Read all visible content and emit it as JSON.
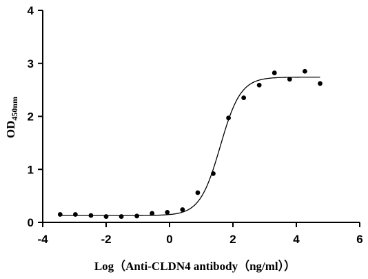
{
  "chart_data": {
    "type": "scatter",
    "xlabel": "Log（Anti-CLDN4 antibody（ng/ml））",
    "ylabel": "OD",
    "ylabel_subscript": "450nm",
    "xlim": [
      -4,
      6
    ],
    "ylim": [
      0,
      4
    ],
    "x_ticks": [
      -4,
      -2,
      0,
      2,
      4,
      6
    ],
    "y_ticks": [
      0,
      1,
      2,
      3,
      4
    ],
    "grid": false,
    "legend": "none",
    "series": [
      {
        "points": [
          {
            "x": -3.45,
            "y": 0.15
          },
          {
            "x": -2.97,
            "y": 0.15
          },
          {
            "x": -2.48,
            "y": 0.13
          },
          {
            "x": -2.0,
            "y": 0.11
          },
          {
            "x": -1.52,
            "y": 0.11
          },
          {
            "x": -1.03,
            "y": 0.12
          },
          {
            "x": -0.55,
            "y": 0.17
          },
          {
            "x": -0.07,
            "y": 0.19
          },
          {
            "x": 0.41,
            "y": 0.24
          },
          {
            "x": 0.89,
            "y": 0.56
          },
          {
            "x": 1.38,
            "y": 0.92
          },
          {
            "x": 1.86,
            "y": 1.97
          },
          {
            "x": 2.34,
            "y": 2.35
          },
          {
            "x": 2.83,
            "y": 2.59
          },
          {
            "x": 3.31,
            "y": 2.82
          },
          {
            "x": 3.79,
            "y": 2.7
          },
          {
            "x": 4.27,
            "y": 2.85
          },
          {
            "x": 4.75,
            "y": 2.62
          }
        ],
        "fit": {
          "model": "4PL",
          "bottom": 0.13,
          "top": 2.74,
          "logEC50": 1.6,
          "hillslope": 1.35,
          "x_range": [
            -3.45,
            4.75
          ]
        }
      }
    ]
  }
}
